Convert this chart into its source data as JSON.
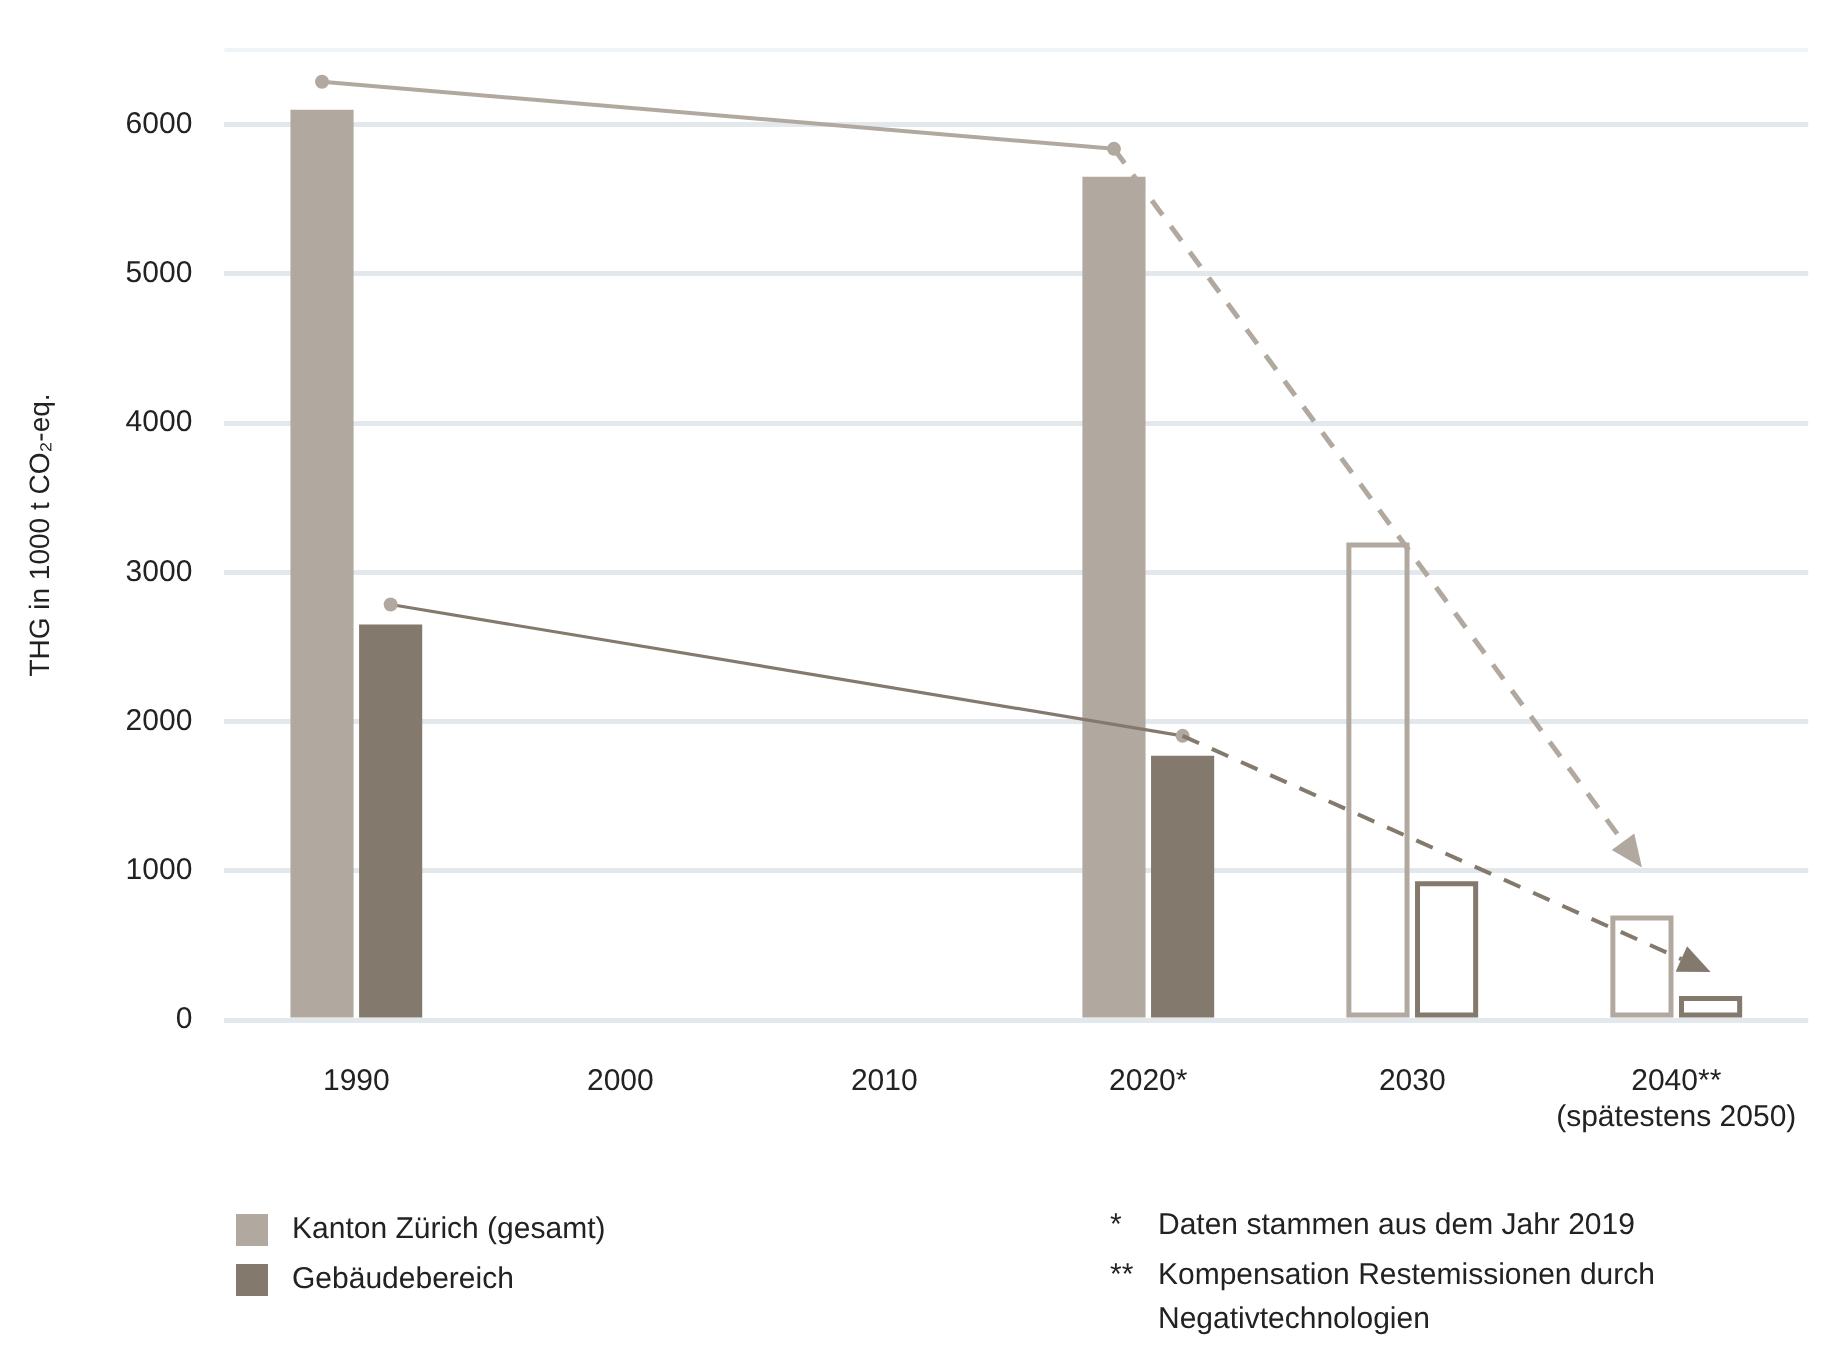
{
  "chart_data": {
    "type": "bar",
    "ylabel": "THG in 1000 t CO₂-eq.",
    "categories": [
      "1990",
      "2000",
      "2010",
      "2020*",
      "2030",
      "2040**\n(spätestens 2050)"
    ],
    "series": [
      {
        "name": "Kanton Zürich (gesamt)",
        "color": "#b1a99f",
        "values": [
          6100,
          null,
          null,
          5650,
          null,
          null
        ]
      },
      {
        "name": "Gebäudebereich",
        "color": "#84796d",
        "values": [
          2650,
          null,
          null,
          1770,
          null,
          null
        ]
      },
      {
        "color": "#b1a99f",
        "line_style": "solid",
        "values": [
          null,
          null,
          null,
          null,
          3200,
          700
        ]
      },
      {
        "color": "#84796d",
        "line_style": "solid",
        "values": [
          null,
          null,
          null,
          null,
          930,
          160
        ]
      }
    ],
    "ylim": [
      0,
      6500
    ],
    "yticks": [
      0,
      1000,
      2000,
      3000,
      4000,
      5000,
      6000
    ],
    "grid": "y",
    "legend": "bottom left",
    "annotations": [
      "*\tDaten stammen aus dem Jahr 2019",
      "**\tKompensation Restemissionen durch Negativtechnologien"
    ]
  }
}
